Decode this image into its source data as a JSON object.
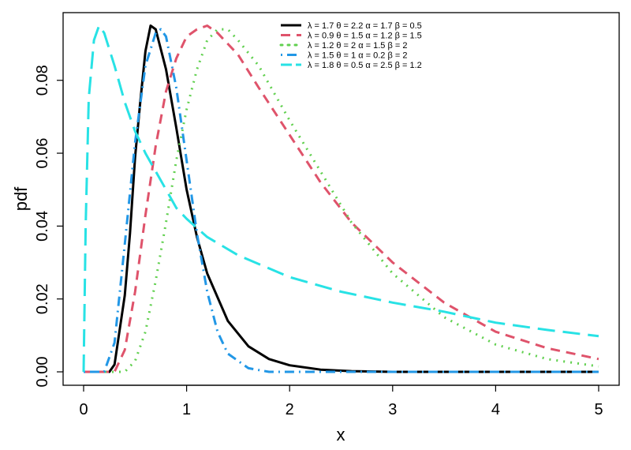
{
  "chart_data": {
    "type": "line",
    "xlabel": "x",
    "ylabel": "pdf",
    "xlim": [
      0,
      5
    ],
    "ylim": [
      0,
      0.095
    ],
    "x_ticks": [
      "0",
      "1",
      "2",
      "3",
      "4",
      "5"
    ],
    "y_ticks": [
      "0.00",
      "0.02",
      "0.04",
      "0.06",
      "0.08"
    ],
    "legend_position": "top-right",
    "series": [
      {
        "name": "λ = 1.7  θ = 2.2  α = 1.7  β = 0.5",
        "color": "#000000",
        "dash": "solid",
        "points": [
          [
            0,
            0
          ],
          [
            0.25,
            0
          ],
          [
            0.3,
            0.002
          ],
          [
            0.4,
            0.021
          ],
          [
            0.45,
            0.038
          ],
          [
            0.5,
            0.059
          ],
          [
            0.55,
            0.074
          ],
          [
            0.6,
            0.088
          ],
          [
            0.65,
            0.095
          ],
          [
            0.7,
            0.094
          ],
          [
            0.8,
            0.083
          ],
          [
            0.9,
            0.067
          ],
          [
            1.0,
            0.05
          ],
          [
            1.1,
            0.037
          ],
          [
            1.2,
            0.027
          ],
          [
            1.4,
            0.014
          ],
          [
            1.6,
            0.007
          ],
          [
            1.8,
            0.0035
          ],
          [
            2.0,
            0.0018
          ],
          [
            2.3,
            0.0006
          ],
          [
            2.6,
            0.0002
          ],
          [
            3.0,
            0
          ],
          [
            5.0,
            0
          ]
        ]
      },
      {
        "name": "λ = 0.9  θ = 1.5  α = 1.2  β = 1.5",
        "color": "#DF536B",
        "dash": "dashed",
        "points": [
          [
            0,
            0
          ],
          [
            0.3,
            0
          ],
          [
            0.4,
            0.006
          ],
          [
            0.5,
            0.022
          ],
          [
            0.6,
            0.043
          ],
          [
            0.7,
            0.062
          ],
          [
            0.8,
            0.077
          ],
          [
            0.9,
            0.086
          ],
          [
            1.0,
            0.092
          ],
          [
            1.1,
            0.094
          ],
          [
            1.2,
            0.095
          ],
          [
            1.3,
            0.093
          ],
          [
            1.5,
            0.087
          ],
          [
            1.7,
            0.078
          ],
          [
            2.0,
            0.065
          ],
          [
            2.3,
            0.052
          ],
          [
            2.6,
            0.041
          ],
          [
            3.0,
            0.03
          ],
          [
            3.5,
            0.019
          ],
          [
            4.0,
            0.011
          ],
          [
            4.5,
            0.0065
          ],
          [
            5.0,
            0.0035
          ]
        ]
      },
      {
        "name": "λ = 1.2  θ = 2  α = 1.5  β = 2",
        "color": "#61D04F",
        "dash": "dotted",
        "points": [
          [
            0,
            0
          ],
          [
            0.4,
            0
          ],
          [
            0.5,
            0.003
          ],
          [
            0.6,
            0.011
          ],
          [
            0.7,
            0.025
          ],
          [
            0.8,
            0.041
          ],
          [
            0.9,
            0.058
          ],
          [
            1.0,
            0.072
          ],
          [
            1.1,
            0.083
          ],
          [
            1.2,
            0.091
          ],
          [
            1.3,
            0.094
          ],
          [
            1.4,
            0.094
          ],
          [
            1.5,
            0.091
          ],
          [
            1.7,
            0.084
          ],
          [
            2.0,
            0.069
          ],
          [
            2.3,
            0.055
          ],
          [
            2.6,
            0.041
          ],
          [
            3.0,
            0.027
          ],
          [
            3.5,
            0.015
          ],
          [
            4.0,
            0.0075
          ],
          [
            4.5,
            0.0035
          ],
          [
            5.0,
            0.0015
          ]
        ]
      },
      {
        "name": "λ = 1.5  θ = 1  α = 0.2  β = 2",
        "color": "#2297E6",
        "dash": "dashdot",
        "points": [
          [
            0,
            0
          ],
          [
            0.2,
            0
          ],
          [
            0.3,
            0.008
          ],
          [
            0.4,
            0.035
          ],
          [
            0.5,
            0.063
          ],
          [
            0.6,
            0.084
          ],
          [
            0.7,
            0.093
          ],
          [
            0.75,
            0.094
          ],
          [
            0.8,
            0.092
          ],
          [
            0.9,
            0.078
          ],
          [
            1.0,
            0.058
          ],
          [
            1.1,
            0.038
          ],
          [
            1.2,
            0.022
          ],
          [
            1.3,
            0.011
          ],
          [
            1.4,
            0.005
          ],
          [
            1.6,
            0.001
          ],
          [
            1.8,
            0
          ],
          [
            5.0,
            0
          ]
        ]
      },
      {
        "name": "λ = 1.8  θ = 0.5  α = 2.5  β = 1.2",
        "color": "#28E2E5",
        "dash": "longdash",
        "points": [
          [
            0,
            0
          ],
          [
            0.02,
            0.04
          ],
          [
            0.05,
            0.075
          ],
          [
            0.1,
            0.091
          ],
          [
            0.15,
            0.095
          ],
          [
            0.2,
            0.093
          ],
          [
            0.3,
            0.084
          ],
          [
            0.4,
            0.074
          ],
          [
            0.5,
            0.066
          ],
          [
            0.6,
            0.06
          ],
          [
            0.7,
            0.055
          ],
          [
            0.8,
            0.05
          ],
          [
            0.9,
            0.045
          ],
          [
            1.0,
            0.042
          ],
          [
            1.2,
            0.037
          ],
          [
            1.5,
            0.032
          ],
          [
            2.0,
            0.026
          ],
          [
            2.5,
            0.022
          ],
          [
            3.0,
            0.019
          ],
          [
            3.5,
            0.0165
          ],
          [
            4.0,
            0.0135
          ],
          [
            4.5,
            0.0115
          ],
          [
            5.0,
            0.0098
          ]
        ]
      }
    ]
  }
}
